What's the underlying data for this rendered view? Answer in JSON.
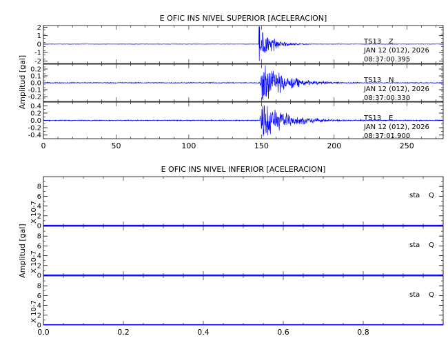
{
  "chart_data": [
    {
      "type": "line",
      "title": "E OFIC INS NIVEL SUPERIOR [ACELERACION]",
      "ylabel": "Amplitud [gal]",
      "xlabel": "",
      "xlim": [
        0,
        275
      ],
      "x_ticks": [
        0,
        50,
        100,
        150,
        200,
        250
      ],
      "grid": false,
      "line_color": "#0000ff",
      "traces": [
        {
          "station": "TS13",
          "component": "Z",
          "date": "JAN 12 (012), 2026",
          "time": "08:37:00.395",
          "ylim": [
            -2.3,
            2.2
          ],
          "y_ticks": [
            "2",
            "1",
            "0",
            "-1",
            "-2"
          ],
          "noise": 0.02,
          "onset": 148.5,
          "decay": 9,
          "peak": 1.3,
          "spike": 2.1,
          "coda_end": 185
        },
        {
          "station": "TS13",
          "component": "N",
          "date": "JAN 12 (012), 2026",
          "time": "08:37:00.330",
          "ylim": [
            -0.27,
            0.27
          ],
          "y_ticks": [
            "0.2",
            "0.1",
            "0.0",
            "-0.1",
            "-0.2"
          ],
          "noise": 0.006,
          "onset": 149,
          "decay": 14,
          "peak": 0.26,
          "spike": 0,
          "coda_end": 240
        },
        {
          "station": "TS13",
          "component": "E",
          "date": "JAN 12 (012), 2026",
          "time": "08:37:01.900",
          "ylim": [
            -0.5,
            0.5
          ],
          "y_ticks": [
            "0.4",
            "0.2",
            "0.0",
            "-0.2",
            "-0.4"
          ],
          "noise": 0.012,
          "onset": 149,
          "decay": 16,
          "peak": 0.45,
          "spike": 0,
          "coda_end": 245
        }
      ]
    },
    {
      "type": "line",
      "title": "E OFIC INS NIVEL INFERIOR [ACELERACION]",
      "ylabel": "Amplitud [gal]",
      "xlabel": "",
      "xlim": [
        0,
        1.0
      ],
      "x_ticks": [
        "0.0",
        "0.2",
        "0.4",
        "0.6",
        "0.8"
      ],
      "grid": false,
      "line_color": "#0000ff",
      "traces": [
        {
          "station": "sta",
          "component": "Q",
          "scale_label": "X 10-7",
          "ylim": [
            0,
            10
          ],
          "y_ticks": [
            "8",
            "6",
            "4",
            "2",
            "0"
          ],
          "values": "flat zero"
        },
        {
          "station": "sta",
          "component": "Q",
          "scale_label": "X 10-7",
          "ylim": [
            0,
            10
          ],
          "y_ticks": [
            "8",
            "6",
            "4",
            "2",
            "0"
          ],
          "values": "flat zero"
        },
        {
          "station": "sta",
          "component": "Q",
          "scale_label": "X 10-7",
          "ylim": [
            0,
            10
          ],
          "y_ticks": [
            "8",
            "6",
            "4",
            "2",
            "0"
          ],
          "values": "flat zero"
        }
      ]
    }
  ]
}
